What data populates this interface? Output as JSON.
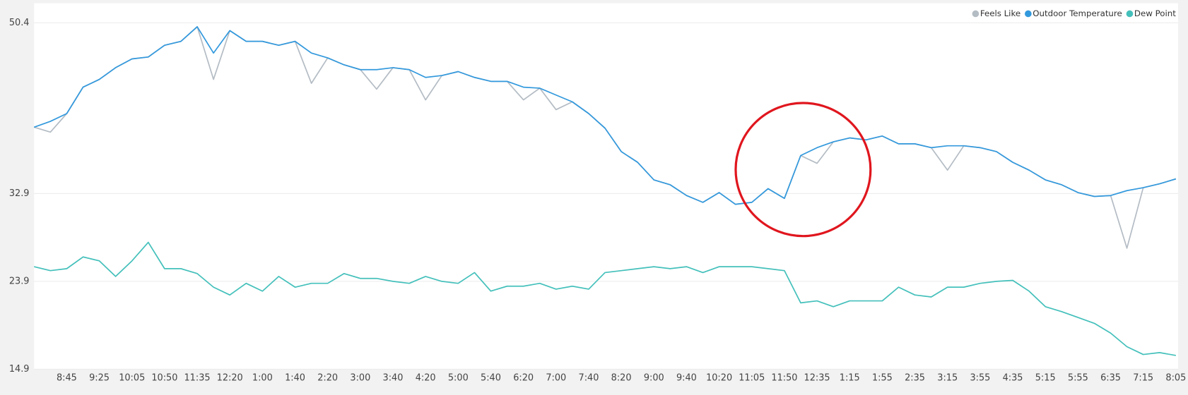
{
  "chart_data": {
    "type": "line",
    "categories": [
      null,
      null,
      "8:45",
      null,
      "9:25",
      null,
      "10:05",
      null,
      "10:50",
      null,
      "11:35",
      null,
      "12:20",
      null,
      "1:00",
      null,
      "1:40",
      null,
      "2:20",
      null,
      "3:00",
      null,
      "3:40",
      null,
      "4:20",
      null,
      "5:00",
      null,
      "5:40",
      null,
      "6:20",
      null,
      "7:00",
      null,
      "7:40",
      null,
      "8:20",
      null,
      "9:00",
      null,
      "9:40",
      null,
      "10:20",
      null,
      "11:05",
      null,
      "11:50",
      null,
      "12:35",
      null,
      "1:15",
      null,
      "1:55",
      null,
      "2:35",
      null,
      "3:15",
      null,
      "3:55",
      null,
      "4:35",
      null,
      "5:15",
      null,
      "5:55",
      null,
      "6:35",
      null,
      "7:15",
      null,
      "8:05"
    ],
    "series": [
      {
        "name": "Feels Like",
        "color": "#b4bcc4",
        "values": [
          39.7,
          39.2,
          41.1,
          43.8,
          44.6,
          45.8,
          46.7,
          46.9,
          48.1,
          48.5,
          50.0,
          44.6,
          49.6,
          48.5,
          48.5,
          48.1,
          48.5,
          44.2,
          46.8,
          46.1,
          45.6,
          43.6,
          45.8,
          45.6,
          42.5,
          45.0,
          45.4,
          44.8,
          44.4,
          44.4,
          42.5,
          43.7,
          41.5,
          42.3,
          41.1,
          39.6,
          37.2,
          36.1,
          34.3,
          33.8,
          32.7,
          32.0,
          33.0,
          31.8,
          32.0,
          33.4,
          32.4,
          36.8,
          36.0,
          38.2,
          38.6,
          38.4,
          38.8,
          38.0,
          38.0,
          37.6,
          35.3,
          37.8,
          37.6,
          37.2,
          36.1,
          35.3,
          34.3,
          33.8,
          33.0,
          32.6,
          32.7,
          27.3,
          33.5,
          33.9,
          34.4
        ]
      },
      {
        "name": "Outdoor Temperature",
        "color": "#3399dd",
        "values": [
          39.7,
          40.3,
          41.1,
          43.8,
          44.6,
          45.8,
          46.7,
          46.9,
          48.1,
          48.5,
          50.0,
          47.3,
          49.6,
          48.5,
          48.5,
          48.1,
          48.5,
          47.3,
          46.8,
          46.1,
          45.6,
          45.6,
          45.8,
          45.6,
          44.8,
          45.0,
          45.4,
          44.8,
          44.4,
          44.4,
          43.8,
          43.7,
          43.0,
          42.3,
          41.1,
          39.6,
          37.2,
          36.1,
          34.3,
          33.8,
          32.7,
          32.0,
          33.0,
          31.8,
          32.0,
          33.4,
          32.4,
          36.8,
          37.6,
          38.2,
          38.6,
          38.4,
          38.8,
          38.0,
          38.0,
          37.6,
          37.8,
          37.8,
          37.6,
          37.2,
          36.1,
          35.3,
          34.3,
          33.8,
          33.0,
          32.6,
          32.7,
          33.2,
          33.5,
          33.9,
          34.4
        ]
      },
      {
        "name": "Dew Point",
        "color": "#44c0bb",
        "values": [
          25.4,
          25.0,
          25.2,
          26.4,
          26.0,
          24.4,
          26.0,
          27.9,
          25.2,
          25.2,
          24.7,
          23.3,
          22.5,
          23.7,
          22.9,
          24.4,
          23.3,
          23.7,
          23.7,
          24.7,
          24.2,
          24.2,
          23.9,
          23.7,
          24.4,
          23.9,
          23.7,
          24.8,
          22.9,
          23.4,
          23.4,
          23.7,
          23.1,
          23.4,
          23.1,
          24.8,
          25.0,
          25.2,
          25.4,
          25.2,
          25.4,
          24.8,
          25.4,
          25.4,
          25.4,
          25.2,
          25.0,
          21.7,
          21.9,
          21.3,
          21.9,
          21.9,
          21.9,
          23.3,
          22.5,
          22.3,
          23.3,
          23.3,
          23.7,
          23.9,
          24.0,
          22.9,
          21.3,
          20.8,
          20.2,
          19.6,
          18.6,
          17.2,
          16.4,
          16.6,
          16.3
        ]
      }
    ],
    "ylim": [
      14.9,
      50.4
    ],
    "yticks": [
      14.9,
      23.9,
      32.9,
      50.4
    ],
    "grid": true,
    "legend": "top-right"
  }
}
